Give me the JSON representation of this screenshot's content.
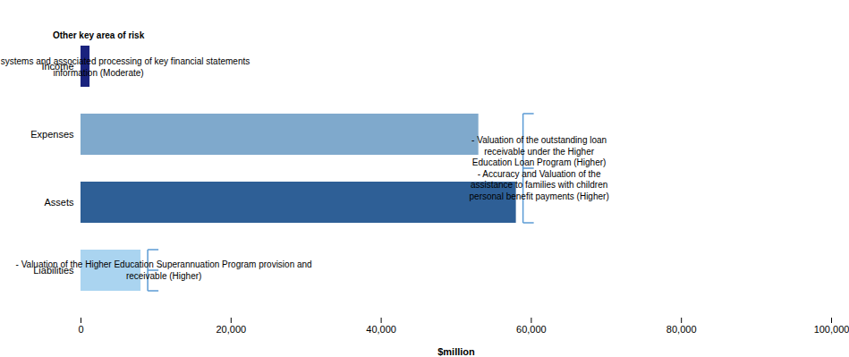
{
  "chart_data": {
    "type": "bar",
    "orientation": "horizontal",
    "categories": [
      "Liabilities",
      "Assets",
      "Expenses",
      "Income"
    ],
    "values": [
      8000,
      58000,
      53000,
      1200
    ],
    "colors": [
      "#aad4f0",
      "#2e5f96",
      "#7fa9cc",
      "#1a237e"
    ],
    "xlim": [
      0,
      100000
    ],
    "xticks": [
      0,
      {
        "value": 20000,
        "label": "20,000"
      },
      {
        "value": 40000,
        "label": "40,000"
      },
      {
        "value": 60000,
        "label": "60,000"
      },
      {
        "value": 80000,
        "label": "80,000"
      },
      {
        "value": 100000,
        "label": "100,000"
      }
    ],
    "xlabel": "$million",
    "annotations": [
      {
        "title": "Other key area of risk",
        "text": "- IT business systems and associated processing of key financial statements\ninformation (Moderate)",
        "categories": [
          "Income"
        ]
      },
      {
        "text": "- Valuation of the outstanding loan\nreceivable under the Higher\nEducation Loan Program (Higher)\n- Accuracy and Valuation of the\nassistance to families with children\npersonal benefit payments (Higher)",
        "categories": [
          "Expenses",
          "Assets"
        ],
        "color": "#5b9bd5"
      },
      {
        "text": "- Valuation of the Higher Education Superannuation Program provision and\nreceivable (Higher)",
        "categories": [
          "Liabilities"
        ],
        "color": "#5b9bd5"
      }
    ]
  }
}
